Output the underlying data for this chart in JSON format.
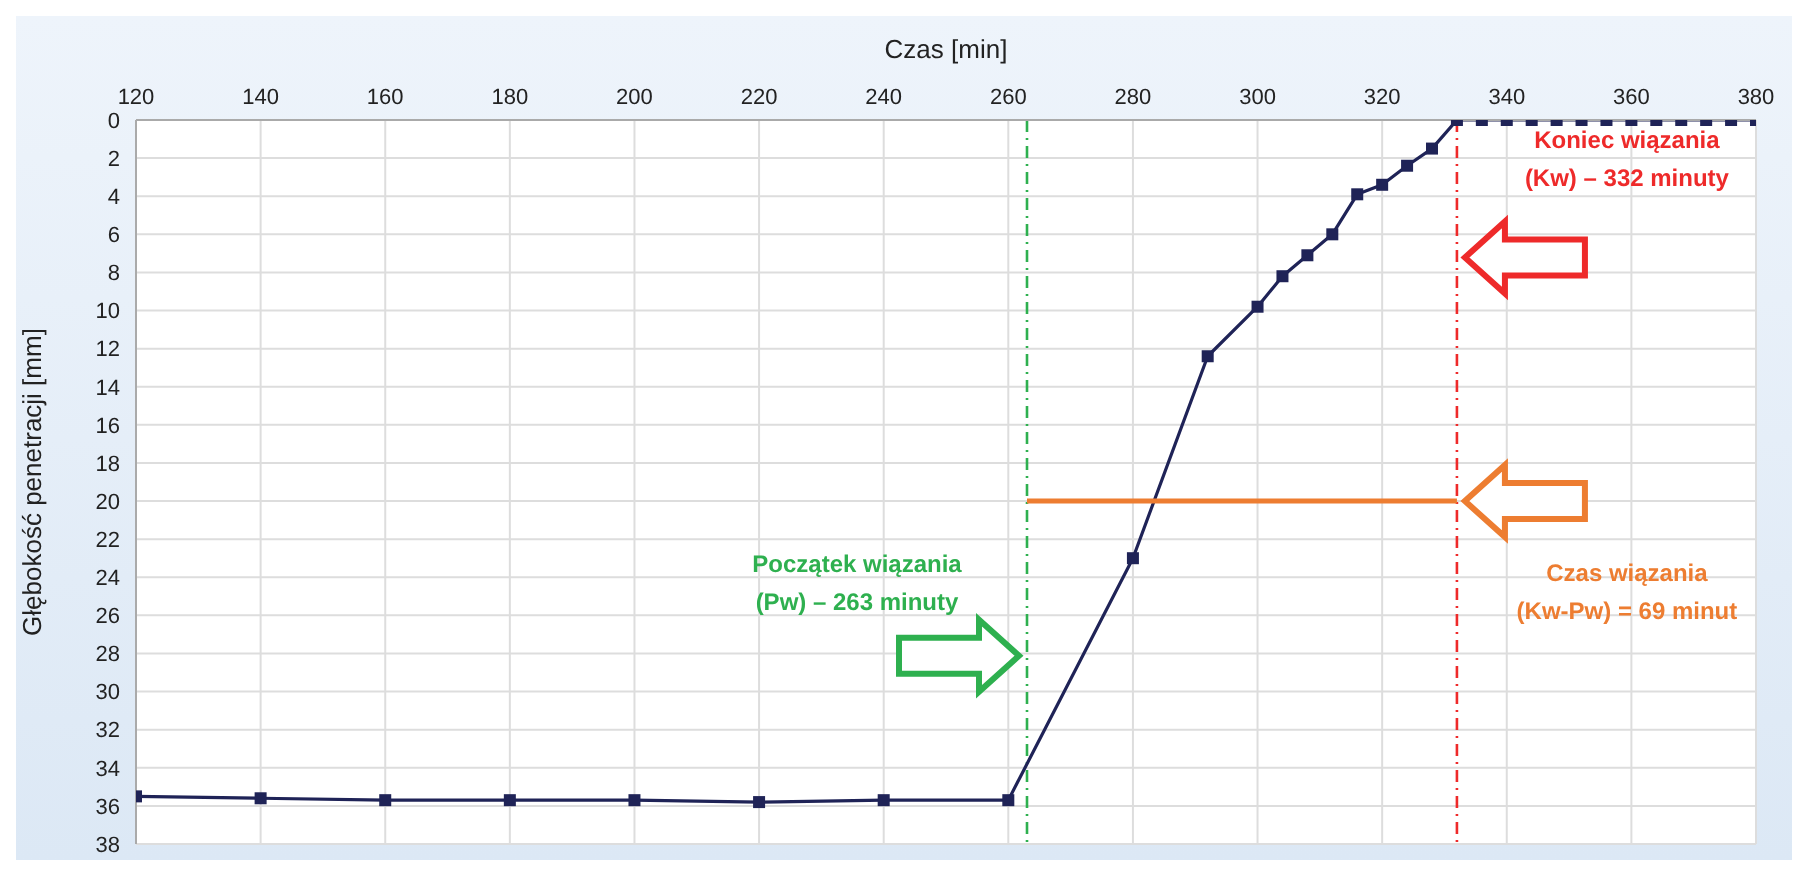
{
  "chart_data": {
    "type": "line",
    "xlabel": "Czas [min]",
    "ylabel": "Głębokość penetracji [mm]",
    "x": [
      120,
      140,
      160,
      180,
      200,
      220,
      240,
      260,
      280,
      292,
      300,
      304,
      308,
      312,
      316,
      320,
      324,
      328,
      332,
      336,
      340,
      344,
      348,
      352,
      356,
      360,
      364,
      368,
      372,
      376,
      380
    ],
    "series": [
      {
        "color": "#1f2357",
        "marker": "square",
        "values": [
          35.5,
          35.6,
          35.7,
          35.7,
          35.7,
          35.8,
          35.7,
          35.7,
          23,
          12.4,
          9.8,
          8.2,
          7.1,
          6,
          3.9,
          3.4,
          2.4,
          1.5,
          0,
          0,
          0,
          0,
          0,
          0,
          0,
          0,
          0,
          0,
          0,
          0,
          0
        ]
      },
      {
        "type": "line",
        "color": "#ed7d31",
        "marker": "none",
        "x": [
          263,
          332
        ],
        "values": [
          20,
          20
        ]
      }
    ],
    "xlim": [
      120,
      380
    ],
    "xticks": [
      120,
      140,
      160,
      180,
      200,
      220,
      240,
      260,
      280,
      300,
      320,
      340,
      360,
      380
    ],
    "ylim": [
      38,
      0
    ],
    "yticks": [
      0,
      2,
      4,
      6,
      8,
      10,
      12,
      14,
      16,
      18,
      20,
      22,
      24,
      26,
      28,
      30,
      32,
      34,
      36,
      38
    ],
    "grid": true,
    "legend": false,
    "line_style": "solid",
    "ref_lines": [
      {
        "axis": "x",
        "value": 263,
        "color": "#2eb04f",
        "line_style": "dashed"
      },
      {
        "axis": "x",
        "value": 332,
        "color": "#ee2a2a",
        "line_style": "dashed"
      }
    ],
    "annotations": [
      "Początek wiązania\n(Pw) – 263 minuty",
      "Koniec wiązania\n(Kw) – 332 minuty",
      "Czas wiązania\n(Kw-Pw) = 69 minut"
    ]
  }
}
